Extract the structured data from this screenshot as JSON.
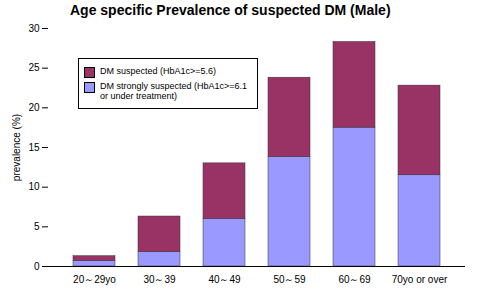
{
  "chart_data": {
    "type": "bar",
    "title": "Age specific Prevalence of suspected DM (Male)",
    "categories": [
      "20～29yo",
      "30～39",
      "40～49",
      "50～59",
      "60～69",
      "70yo or over"
    ],
    "series": [
      {
        "name": "DM strongly suspected (HbA1c>=6.1 or under treatment)",
        "color": "#9999ff",
        "values": [
          0.7,
          1.8,
          6.0,
          13.8,
          17.5,
          11.5
        ]
      },
      {
        "name": "DM suspected (HbA1c>=5.6)",
        "color": "#993366",
        "values": [
          0.6,
          4.5,
          7.0,
          10.0,
          10.8,
          11.3
        ]
      }
    ],
    "stacked": true,
    "ylabel": "prevalence (%)",
    "ylim": [
      0,
      30
    ],
    "yticks": [
      0,
      5,
      10,
      15,
      20,
      25,
      30
    ],
    "grid": false,
    "legend": "upper left"
  }
}
